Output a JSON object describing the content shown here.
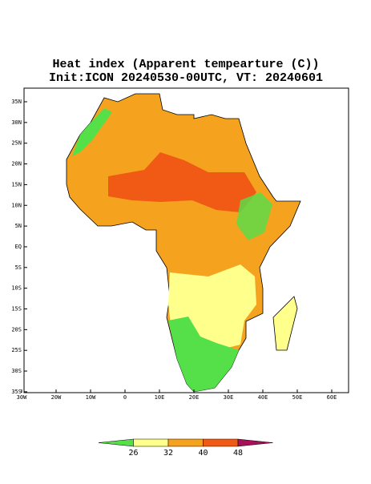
{
  "title": {
    "line1": "Heat index (Apparent tempearture (C))",
    "line2": "Init:ICON 20240530-00UTC, VT: 20240601"
  },
  "lat_labels": [
    "35N",
    "30N",
    "25N",
    "20N",
    "15N",
    "10N",
    "5N",
    "EQ",
    "5S",
    "10S",
    "15S",
    "20S",
    "25S",
    "30S",
    "35S"
  ],
  "lon_labels": [
    "30W",
    "20W",
    "10W",
    "0",
    "10E",
    "20E",
    "30E",
    "40E",
    "50E",
    "60E"
  ],
  "colorbar": {
    "ticks": [
      26,
      32,
      40,
      48
    ],
    "colors": [
      "#55e04a",
      "#ffff8c",
      "#f5a21e",
      "#f05a14",
      "#a8105a"
    ]
  }
}
